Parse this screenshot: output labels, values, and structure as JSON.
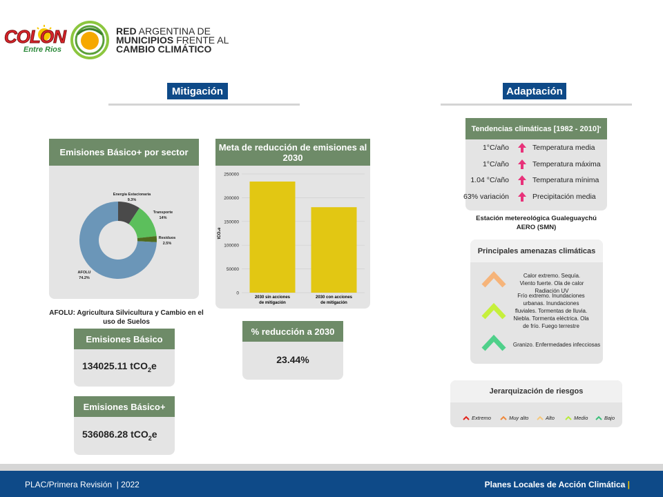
{
  "header": {
    "logo_colon_title": "COLON",
    "logo_colon_subtitle": "Entre Rios",
    "ramcc_line1_bold": "RED",
    "ramcc_line1_rest": " ARGENTINA DE",
    "ramcc_line2_bold": "MUNICIPIOS",
    "ramcc_line2_rest": " FRENTE AL",
    "ramcc_line3": "CAMBIO CLIMÁTICO"
  },
  "mitigacion": {
    "title": "Mitigación",
    "donut": {
      "title": "Emisiones Básico+ por sector",
      "labels": [
        {
          "name": "Energía Estacionaria",
          "pct": "9.3%"
        },
        {
          "name": "Transporte",
          "pct": "14%"
        },
        {
          "name": "Residuos",
          "pct": "2.5%"
        },
        {
          "name": "AFOLU",
          "pct": "74.2%"
        }
      ],
      "footnote": "AFOLU: Agricultura Silvicultura y Cambio en el uso de Suelos"
    },
    "meta": {
      "title": "Meta de reducción de emisiones al 2030"
    },
    "basico": {
      "label": "Emisiones Básico",
      "value": "134025.11 tCO",
      "sub": "2",
      "unit": "e"
    },
    "basico_plus": {
      "label": "Emisiones Básico+",
      "value": "536086.28 tCO",
      "sub": "2",
      "unit": "e"
    },
    "reduccion": {
      "label": "% reducción a 2030",
      "value": "23.44%"
    }
  },
  "chart_data": [
    {
      "type": "pie",
      "categories": [
        "Energía Estacionaria",
        "Transporte",
        "Residuos",
        "AFOLU"
      ],
      "values": [
        9.3,
        14,
        2.5,
        74.2
      ],
      "colors": [
        "#4a4a4a",
        "#5cbf5c",
        "#4f6b1f",
        "#6b96b8"
      ],
      "title": "Emisiones Básico+ por sector"
    },
    {
      "type": "bar",
      "categories": [
        "2030 sin acciones de mitigación",
        "2030 con acciones de mitigación"
      ],
      "values": [
        234000,
        180000
      ],
      "ylabel": "tCO₂e",
      "ylim": [
        0,
        250000
      ],
      "yticks": [
        "0",
        "50000",
        "100000",
        "150000",
        "200000",
        "250000"
      ],
      "color": "#e2c713",
      "title": "Meta de reducción de emisiones al 2030"
    }
  ],
  "adaptacion": {
    "title": "Adaptación",
    "tendencias": {
      "title": "Tendencias climáticas  [1982 - 2010]",
      "title_sup": "*",
      "rows": [
        {
          "value": "1°C/año",
          "name": "Temperatura media"
        },
        {
          "value": "1°C/año",
          "name": "Temperatura máxima"
        },
        {
          "value": "1.04 °C/año",
          "name": "Temperatura mínima"
        },
        {
          "value": "63% variación",
          "name": "Precipitación media"
        }
      ],
      "station": "Estación metereológica Gualeguaychú AERO (SMN)"
    },
    "amenazas": {
      "title": "Principales amenazas climáticas",
      "items": [
        {
          "text": "Calor extremo. Sequía. Viento fuerte. Ola de calor Radiación UV",
          "color": "#f6b47a"
        },
        {
          "text": "Frío extremo. Inundaciones urbanas. Inundaciones fluviales. Tormentas de lluvia. Niebla. Tormenta eléctrica. Ola de frío. Fuego terrestre",
          "color": "#c6f03c"
        },
        {
          "text": "Granizo. Enfermedades infecciosas",
          "color": "#4fd08a"
        }
      ]
    },
    "jerarquizacion": {
      "title": "Jerarquización de riesgos",
      "legend": [
        {
          "label": "Extremo",
          "color": "#e2231a"
        },
        {
          "label": "Muy alto",
          "color": "#f08a3c"
        },
        {
          "label": "Alto",
          "color": "#f6c77a"
        },
        {
          "label": "Medio",
          "color": "#b8ec3c"
        },
        {
          "label": "Bajo",
          "color": "#3cc07a"
        }
      ]
    }
  },
  "footer": {
    "left": "PLAC/Primera Revisión  | 2022",
    "right": "Planes Locales de Acción Climática",
    "right_bar": "|"
  }
}
